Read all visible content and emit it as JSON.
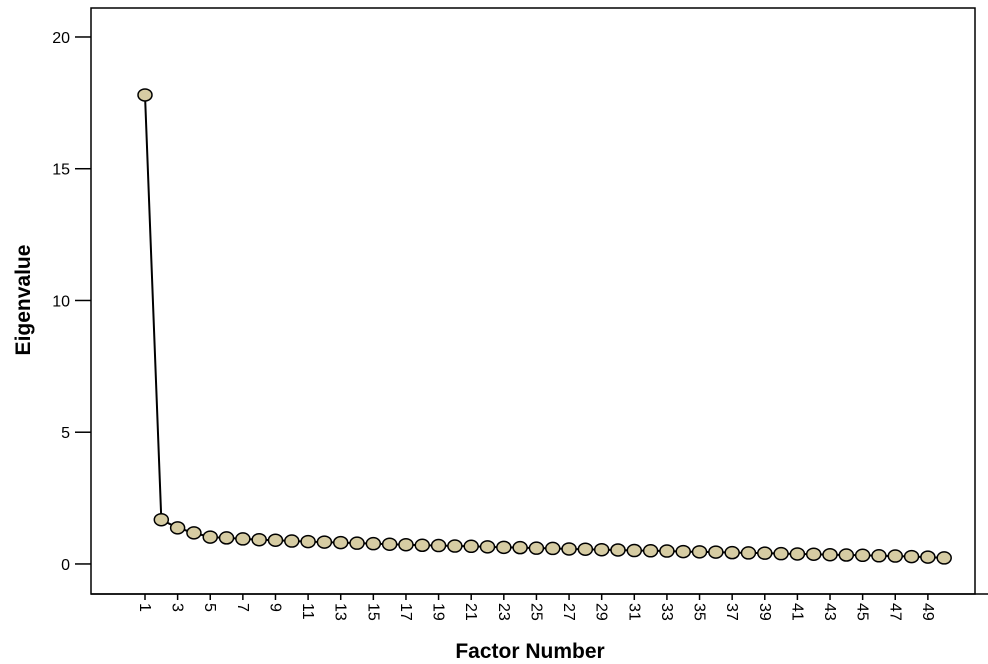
{
  "chart_data": {
    "type": "line",
    "x_label": "Factor Number",
    "y_label": "Eigenvalue",
    "categories": [
      "1",
      null,
      "3",
      null,
      "5",
      null,
      "7",
      null,
      "9",
      null,
      "11",
      null,
      "13",
      null,
      "15",
      null,
      "17",
      null,
      "19",
      null,
      "21",
      null,
      "23",
      null,
      "25",
      null,
      "27",
      null,
      "29",
      null,
      "31",
      null,
      "33",
      null,
      "35",
      null,
      "37",
      null,
      "39",
      null,
      "41",
      null,
      "43",
      null,
      "45",
      null,
      "47",
      null,
      "49",
      null
    ],
    "values": [
      17.8,
      1.68,
      1.37,
      1.18,
      1.02,
      0.99,
      0.95,
      0.92,
      0.9,
      0.87,
      0.85,
      0.83,
      0.81,
      0.79,
      0.77,
      0.75,
      0.73,
      0.71,
      0.7,
      0.68,
      0.67,
      0.65,
      0.63,
      0.62,
      0.6,
      0.59,
      0.57,
      0.56,
      0.54,
      0.53,
      0.51,
      0.5,
      0.49,
      0.47,
      0.46,
      0.45,
      0.43,
      0.42,
      0.41,
      0.39,
      0.38,
      0.37,
      0.35,
      0.34,
      0.33,
      0.31,
      0.3,
      0.28,
      0.26,
      0.23
    ],
    "color": "#000000",
    "marker_color": "#d6cca3",
    "ylim": [
      -1.14,
      21.1
    ],
    "yticks": [
      0,
      5,
      10,
      15,
      20
    ],
    "grid": false
  }
}
